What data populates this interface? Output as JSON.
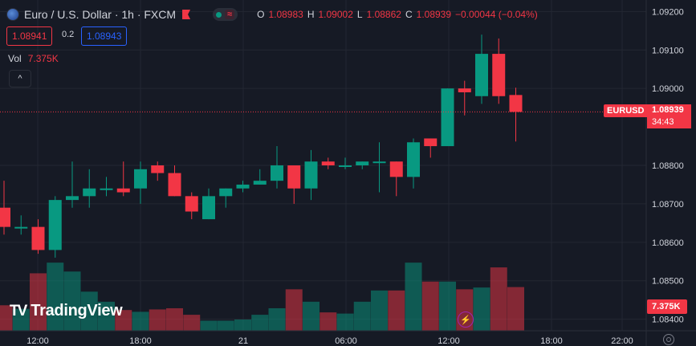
{
  "legend": {
    "title": "Euro / U.S. Dollar · 1h · FXCM",
    "icon": "eurusd-flag-icon",
    "eq_label": "≈",
    "ohlc": {
      "o_label": "O",
      "o": "1.08983",
      "h_label": "H",
      "h": "1.09002",
      "l_label": "L",
      "l": "1.08862",
      "c_label": "C",
      "c": "1.08939",
      "change": "−0.00044 (−0.04%)"
    }
  },
  "trade": {
    "sell": "1.08941",
    "spread": "0.2",
    "buy": "1.08943"
  },
  "volume_legend": {
    "label": "Vol",
    "value": "7.375K"
  },
  "price_label": {
    "symbol": "EURUSD",
    "last": "1.08939",
    "countdown": "34:43"
  },
  "volume_label": "7.375K",
  "logo": {
    "mark": "TV",
    "text": "TradingView"
  },
  "colors": {
    "up": "#089981",
    "down": "#f23645",
    "background": "#161a25",
    "grid": "#232732",
    "axis_text": "#d1d4dc"
  },
  "chart_data": {
    "type": "candlestick",
    "y_ticks": [
      "1.09200",
      "1.09100",
      "1.09000",
      "1.08800",
      "1.08700",
      "1.08600",
      "1.08500",
      "1.08400"
    ],
    "ylim": [
      1.0837,
      1.0923
    ],
    "x_ticks": [
      "12:00",
      "18:00",
      "21",
      "06:00",
      "12:00",
      "18:00",
      "22:00"
    ],
    "last_price": 1.08939,
    "candles": [
      {
        "o": 1.0869,
        "h": 1.0876,
        "l": 1.0862,
        "c": 1.0864,
        "v": 4300
      },
      {
        "o": 1.0864,
        "h": 1.0867,
        "l": 1.0862,
        "c": 1.0864,
        "v": 3700
      },
      {
        "o": 1.0864,
        "h": 1.0866,
        "l": 1.0857,
        "c": 1.0858,
        "v": 9700
      },
      {
        "o": 1.0858,
        "h": 1.0872,
        "l": 1.0856,
        "c": 1.0871,
        "v": 11500
      },
      {
        "o": 1.0871,
        "h": 1.0881,
        "l": 1.0869,
        "c": 1.0872,
        "v": 10000
      },
      {
        "o": 1.0872,
        "h": 1.0879,
        "l": 1.0869,
        "c": 1.0874,
        "v": 6600
      },
      {
        "o": 1.0874,
        "h": 1.0877,
        "l": 1.0872,
        "c": 1.0874,
        "v": 4900
      },
      {
        "o": 1.0874,
        "h": 1.0881,
        "l": 1.0872,
        "c": 1.0873,
        "v": 3500
      },
      {
        "o": 1.0874,
        "h": 1.0881,
        "l": 1.087,
        "c": 1.0879,
        "v": 3200
      },
      {
        "o": 1.088,
        "h": 1.0881,
        "l": 1.0876,
        "c": 1.0878,
        "v": 3600
      },
      {
        "o": 1.0878,
        "h": 1.088,
        "l": 1.0872,
        "c": 1.0872,
        "v": 3800
      },
      {
        "o": 1.0872,
        "h": 1.0873,
        "l": 1.0866,
        "c": 1.0868,
        "v": 2700
      },
      {
        "o": 1.0866,
        "h": 1.0874,
        "l": 1.0866,
        "c": 1.0872,
        "v": 1700
      },
      {
        "o": 1.0872,
        "h": 1.0874,
        "l": 1.0869,
        "c": 1.0874,
        "v": 1700
      },
      {
        "o": 1.0874,
        "h": 1.0876,
        "l": 1.0873,
        "c": 1.0875,
        "v": 1900
      },
      {
        "o": 1.0875,
        "h": 1.0879,
        "l": 1.0875,
        "c": 1.0876,
        "v": 2700
      },
      {
        "o": 1.0876,
        "h": 1.0885,
        "l": 1.0874,
        "c": 1.088,
        "v": 3800
      },
      {
        "o": 1.088,
        "h": 1.088,
        "l": 1.087,
        "c": 1.0874,
        "v": 7000
      },
      {
        "o": 1.0874,
        "h": 1.0884,
        "l": 1.0871,
        "c": 1.0881,
        "v": 4900
      },
      {
        "o": 1.0881,
        "h": 1.0882,
        "l": 1.0879,
        "c": 1.088,
        "v": 3100
      },
      {
        "o": 1.088,
        "h": 1.0882,
        "l": 1.0879,
        "c": 1.088,
        "v": 2900
      },
      {
        "o": 1.088,
        "h": 1.0881,
        "l": 1.0879,
        "c": 1.0881,
        "v": 4900
      },
      {
        "o": 1.0881,
        "h": 1.0886,
        "l": 1.0873,
        "c": 1.0881,
        "v": 6800
      },
      {
        "o": 1.0881,
        "h": 1.0881,
        "l": 1.0872,
        "c": 1.0877,
        "v": 6800
      },
      {
        "o": 1.0877,
        "h": 1.0887,
        "l": 1.0874,
        "c": 1.0886,
        "v": 11500
      },
      {
        "o": 1.0887,
        "h": 1.0887,
        "l": 1.0882,
        "c": 1.0885,
        "v": 8300
      },
      {
        "o": 1.0885,
        "h": 1.09,
        "l": 1.0885,
        "c": 1.09,
        "v": 8300
      },
      {
        "o": 1.09,
        "h": 1.0902,
        "l": 1.0893,
        "c": 1.0899,
        "v": 7000
      },
      {
        "o": 1.0898,
        "h": 1.0914,
        "l": 1.0896,
        "c": 1.0909,
        "v": 7300
      },
      {
        "o": 1.0909,
        "h": 1.0913,
        "l": 1.0896,
        "c": 1.0898,
        "v": 10700
      },
      {
        "o": 1.08983,
        "h": 1.09002,
        "l": 1.08862,
        "c": 1.08939,
        "v": 7375
      }
    ]
  }
}
